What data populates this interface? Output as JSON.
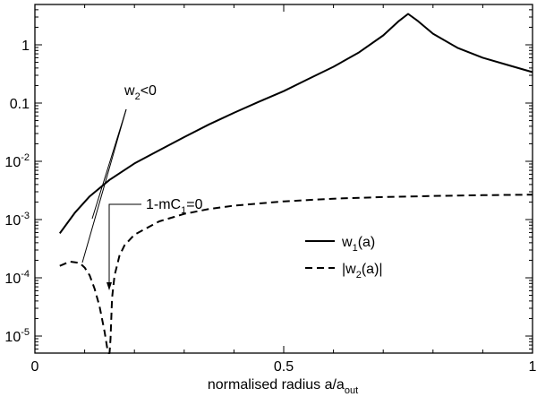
{
  "chart_data": {
    "type": "line",
    "title": "",
    "xlabel": {
      "main": "normalised radius a/a",
      "sub": "out"
    },
    "ylabel": "",
    "xlim": [
      0,
      1
    ],
    "ylim": [
      5e-06,
      4
    ],
    "yscale": "log",
    "grid": false,
    "legend_position": "center-right",
    "x_ticks": [
      {
        "value": 0,
        "label": "0"
      },
      {
        "value": 0.5,
        "label": "0.5"
      },
      {
        "value": 1,
        "label": "1"
      }
    ],
    "y_ticks": [
      {
        "value": 1,
        "label": "1"
      },
      {
        "value": 0.1,
        "label": "0.1"
      },
      {
        "value": 0.01,
        "base": "10",
        "exp": "-2"
      },
      {
        "value": 0.001,
        "base": "10",
        "exp": "-3"
      },
      {
        "value": 0.0001,
        "base": "10",
        "exp": "-4"
      },
      {
        "value": 1e-05,
        "base": "10",
        "exp": "-5"
      }
    ],
    "series": [
      {
        "name": {
          "pre": "w",
          "sub": "1",
          "post": "(a)"
        },
        "style": "solid",
        "x": [
          0.05,
          0.08,
          0.11,
          0.15,
          0.2,
          0.25,
          0.3,
          0.35,
          0.4,
          0.45,
          0.5,
          0.55,
          0.6,
          0.65,
          0.7,
          0.73,
          0.75,
          0.77,
          0.8,
          0.85,
          0.9,
          0.95,
          1.0
        ],
        "y": [
          0.00058,
          0.0013,
          0.0025,
          0.0048,
          0.0092,
          0.0155,
          0.026,
          0.043,
          0.068,
          0.105,
          0.16,
          0.26,
          0.42,
          0.73,
          1.45,
          2.5,
          3.4,
          2.55,
          1.55,
          0.88,
          0.6,
          0.45,
          0.34
        ]
      },
      {
        "name": {
          "pre": "|w",
          "sub": "2",
          "post": "(a)|"
        },
        "style": "dashed",
        "x": [
          0.05,
          0.07,
          0.09,
          0.1,
          0.11,
          0.12,
          0.13,
          0.14,
          0.145,
          0.148,
          0.15,
          0.152,
          0.155,
          0.16,
          0.17,
          0.18,
          0.2,
          0.25,
          0.3,
          0.35,
          0.4,
          0.5,
          0.6,
          0.7,
          0.8,
          0.9,
          1.0
        ],
        "y": [
          0.00016,
          0.00019,
          0.00018,
          0.00015,
          0.00011,
          6.5e-05,
          3.2e-05,
          1.2e-05,
          6.5e-06,
          5e-06,
          5e-06,
          9e-06,
          4.5e-05,
          0.00011,
          0.00024,
          0.00036,
          0.00055,
          0.00093,
          0.00125,
          0.00152,
          0.00173,
          0.00205,
          0.00228,
          0.00243,
          0.00254,
          0.00262,
          0.00268
        ]
      }
    ],
    "annotations": [
      {
        "id": "w2-neg",
        "text": {
          "pre": "w",
          "sub": "2",
          "post": "<0"
        }
      },
      {
        "id": "one-minus",
        "text": {
          "pre": "1-mC",
          "sub": "1",
          "post": "=0"
        }
      }
    ]
  }
}
